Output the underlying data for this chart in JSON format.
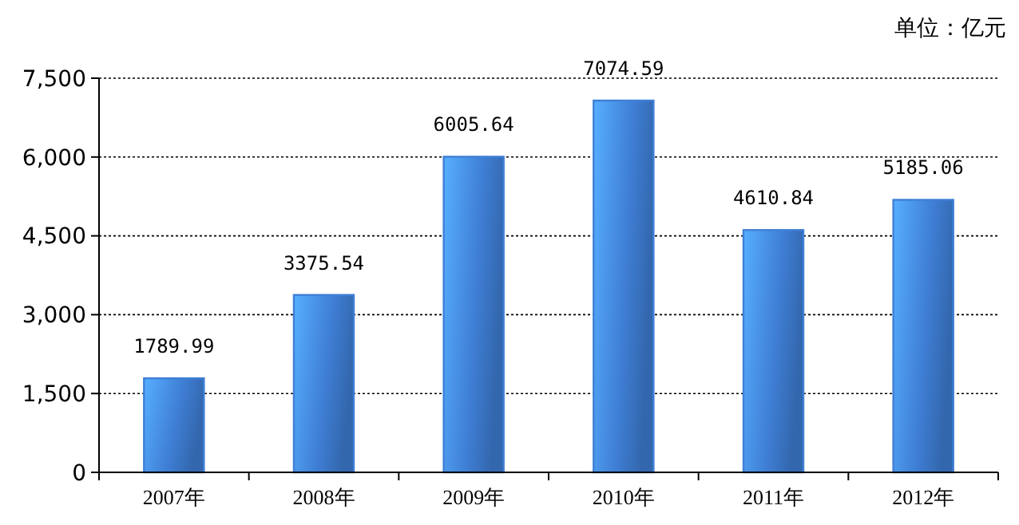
{
  "chart_data": {
    "type": "bar",
    "categories": [
      "2007年",
      "2008年",
      "2009年",
      "2010年",
      "2011年",
      "2012年"
    ],
    "values": [
      1789.99,
      3375.54,
      6005.64,
      7074.59,
      4610.84,
      5185.06
    ],
    "color": "#3f7fd6",
    "data_labels": true,
    "ylim": [
      0,
      7500
    ],
    "yticks": [
      {
        "value": 0,
        "label": "0"
      },
      {
        "value": 1500,
        "label": "1,500"
      },
      {
        "value": 3000,
        "label": "3,000"
      },
      {
        "value": 4500,
        "label": "4,500"
      },
      {
        "value": 6000,
        "label": "6,000"
      },
      {
        "value": 7500,
        "label": "7,500"
      }
    ],
    "grid": "y",
    "annotations": [
      "单位：亿元"
    ]
  }
}
